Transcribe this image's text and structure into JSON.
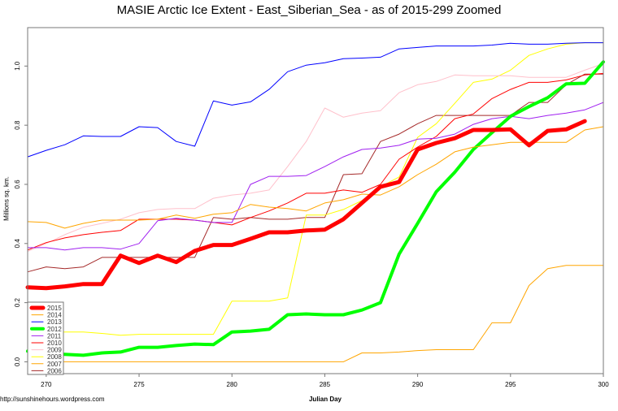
{
  "chart_data": {
    "type": "line",
    "title": "MASIE Arctic Ice Extent - East_Siberian_Sea - as of 2015-299 Zoomed",
    "xlabel": "Julian Day",
    "ylabel": "Millions sq. km.",
    "source": "http://sunshinehours.wordpress.com",
    "xlim": [
      269,
      300
    ],
    "ylim": [
      -0.04,
      1.13
    ],
    "x_ticks": [
      270,
      275,
      280,
      285,
      290,
      295,
      300
    ],
    "y_ticks": [
      0.0,
      0.2,
      0.4,
      0.6,
      0.8,
      1.0
    ],
    "y_tick_labels": [
      "0.0",
      "0.2",
      "0.4",
      "0.6",
      "0.8",
      "1.0"
    ],
    "grid": false,
    "legend_position": "bottom-left",
    "x_start": 269,
    "series": [
      {
        "name": "2015",
        "color": "#ff0000",
        "width": 5,
        "values": [
          0.252,
          0.249,
          0.255,
          0.263,
          0.263,
          0.359,
          0.334,
          0.359,
          0.337,
          0.375,
          0.395,
          0.395,
          0.416,
          0.438,
          0.438,
          0.444,
          0.447,
          0.482,
          0.537,
          0.592,
          0.608,
          0.718,
          0.74,
          0.756,
          0.784,
          0.784,
          0.786,
          0.732,
          0.781,
          0.786,
          0.814
        ]
      },
      {
        "name": "2014",
        "color": "#ffa500",
        "width": 1,
        "values": [
          0.474,
          0.471,
          0.452,
          0.468,
          0.479,
          0.479,
          0.479,
          0.482,
          0.496,
          0.485,
          0.499,
          0.504,
          0.532,
          0.523,
          0.518,
          0.51,
          0.537,
          0.548,
          0.567,
          0.564,
          0.592,
          0.633,
          0.668,
          0.71,
          0.726,
          0.734,
          0.742,
          0.742,
          0.742,
          0.742,
          0.784,
          0.795
        ]
      },
      {
        "name": "2013",
        "color": "#0000ff",
        "width": 1,
        "values": [
          0.693,
          0.715,
          0.734,
          0.764,
          0.762,
          0.762,
          0.795,
          0.792,
          0.745,
          0.729,
          0.882,
          0.868,
          0.879,
          0.921,
          0.981,
          1.003,
          1.011,
          1.025,
          1.027,
          1.03,
          1.058,
          1.063,
          1.068,
          1.068,
          1.068,
          1.071,
          1.077,
          1.074,
          1.074,
          1.077,
          1.079,
          1.079
        ]
      },
      {
        "name": "2012",
        "color": "#00ff00",
        "width": 4,
        "values": [
          0.036,
          0.027,
          0.025,
          0.022,
          0.03,
          0.033,
          0.049,
          0.049,
          0.055,
          0.06,
          0.058,
          0.101,
          0.104,
          0.11,
          0.159,
          0.162,
          0.159,
          0.159,
          0.175,
          0.2,
          0.364,
          0.468,
          0.575,
          0.641,
          0.718,
          0.775,
          0.83,
          0.863,
          0.893,
          0.94,
          0.942,
          1.014
        ]
      },
      {
        "name": "2011",
        "color": "#a020f0",
        "width": 1,
        "values": [
          0.386,
          0.386,
          0.378,
          0.386,
          0.386,
          0.381,
          0.4,
          0.477,
          0.485,
          0.479,
          0.471,
          0.471,
          0.6,
          0.627,
          0.627,
          0.63,
          0.66,
          0.693,
          0.718,
          0.723,
          0.732,
          0.753,
          0.756,
          0.77,
          0.803,
          0.822,
          0.83,
          0.822,
          0.833,
          0.841,
          0.852,
          0.877
        ]
      },
      {
        "name": "2010",
        "color": "#ff0000",
        "width": 1,
        "values": [
          0.378,
          0.403,
          0.419,
          0.43,
          0.438,
          0.444,
          0.482,
          0.482,
          0.482,
          0.479,
          0.471,
          0.463,
          0.488,
          0.51,
          0.537,
          0.57,
          0.57,
          0.581,
          0.573,
          0.6,
          0.685,
          0.726,
          0.762,
          0.822,
          0.838,
          0.89,
          0.921,
          0.945,
          0.945,
          0.953,
          0.97,
          0.975
        ]
      },
      {
        "name": "2009",
        "color": "#ffc0cb",
        "width": 1,
        "values": [
          0.373,
          0.4,
          0.43,
          0.455,
          0.468,
          0.482,
          0.504,
          0.515,
          0.518,
          0.518,
          0.553,
          0.564,
          0.57,
          0.581,
          0.66,
          0.745,
          0.858,
          0.827,
          0.841,
          0.849,
          0.91,
          0.937,
          0.948,
          0.97,
          0.967,
          0.967,
          0.967,
          0.962,
          0.962,
          0.962,
          0.986,
          1.008
        ]
      },
      {
        "name": "2008",
        "color": "#ffff00",
        "width": 1,
        "values": [
          0.099,
          0.096,
          0.101,
          0.101,
          0.096,
          0.09,
          0.093,
          0.093,
          0.093,
          0.093,
          0.093,
          0.205,
          0.205,
          0.205,
          0.216,
          0.496,
          0.496,
          0.515,
          0.545,
          0.592,
          0.625,
          0.759,
          0.805,
          0.874,
          0.945,
          0.956,
          0.986,
          1.036,
          1.058,
          1.074,
          1.079,
          1.079
        ]
      },
      {
        "name": "2007",
        "color": "#ffa500",
        "width": 1,
        "values": [
          0,
          0,
          0,
          0,
          0,
          0,
          0,
          0,
          0,
          0,
          0,
          0,
          0,
          0,
          0,
          0,
          0,
          0,
          0.03,
          0.03,
          0.033,
          0.038,
          0.041,
          0.041,
          0.041,
          0.132,
          0.132,
          0.258,
          0.315,
          0.326,
          0.326,
          0.326
        ]
      },
      {
        "name": "2006",
        "color": "#a52a2a",
        "width": 1,
        "values": [
          0.304,
          0.321,
          0.315,
          0.321,
          0.353,
          0.353,
          0.353,
          0.353,
          0.353,
          0.353,
          0.488,
          0.482,
          0.488,
          0.482,
          0.482,
          0.488,
          0.488,
          0.633,
          0.636,
          0.745,
          0.77,
          0.805,
          0.833,
          0.833,
          0.833,
          0.833,
          0.833,
          0.877,
          0.877,
          0.937,
          0.973,
          0.973
        ]
      }
    ]
  }
}
